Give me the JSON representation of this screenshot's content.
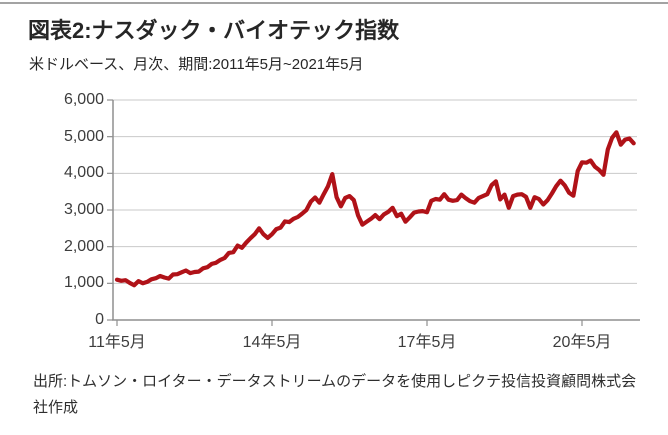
{
  "header": {
    "title": "図表2:ナスダック・バイオテック指数",
    "subtitle": "米ドルベース、月次、期間:2011年5月~2021年5月"
  },
  "footer": {
    "source": "出所:トムソン・ロイター・データストリームのデータを使用しピクテ投信投資顧問株式会社作成"
  },
  "chart_data": {
    "type": "line",
    "title": "ナスダック・バイオテック指数",
    "xlabel": "",
    "ylabel": "",
    "ylim": [
      0,
      6000
    ],
    "ytick_interval": 1000,
    "grid": "horizontal",
    "legend": "none",
    "colors": {
      "line": "#b01218",
      "gridline": "#c9c9c9",
      "axis": "#8f8f8f"
    },
    "yticks": [
      {
        "label": "6,000",
        "value": 6000
      },
      {
        "label": "5,000",
        "value": 5000
      },
      {
        "label": "4,000",
        "value": 4000
      },
      {
        "label": "3,000",
        "value": 3000
      },
      {
        "label": "2,000",
        "value": 2000
      },
      {
        "label": "1,000",
        "value": 1000
      },
      {
        "label": "0",
        "value": 0
      }
    ],
    "xticks": [
      {
        "label": "11年5月",
        "month_index": 0
      },
      {
        "label": "14年5月",
        "month_index": 36
      },
      {
        "label": "17年5月",
        "month_index": 72
      },
      {
        "label": "20年5月",
        "month_index": 108
      }
    ],
    "x_start": "2011-05",
    "x_end": "2021-05",
    "frequency": "monthly",
    "series": [
      {
        "name": "ナスダック・バイオテック指数(米ドルベース)",
        "color": "#b01218",
        "values": [
          1100,
          1070,
          1085,
          1010,
          950,
          1060,
          1000,
          1040,
          1110,
          1140,
          1200,
          1160,
          1130,
          1240,
          1250,
          1300,
          1350,
          1280,
          1310,
          1320,
          1410,
          1440,
          1530,
          1560,
          1640,
          1690,
          1830,
          1850,
          2030,
          1970,
          2110,
          2230,
          2340,
          2500,
          2340,
          2240,
          2340,
          2480,
          2520,
          2690,
          2670,
          2760,
          2810,
          2900,
          3000,
          3230,
          3340,
          3200,
          3430,
          3650,
          3980,
          3350,
          3100,
          3330,
          3380,
          3270,
          2850,
          2600,
          2680,
          2760,
          2860,
          2750,
          2880,
          2950,
          3060,
          2830,
          2900,
          2680,
          2800,
          2930,
          2960,
          2970,
          2940,
          3250,
          3300,
          3280,
          3430,
          3280,
          3250,
          3270,
          3420,
          3320,
          3240,
          3200,
          3330,
          3380,
          3430,
          3680,
          3780,
          3290,
          3420,
          3060,
          3380,
          3420,
          3430,
          3360,
          3060,
          3350,
          3300,
          3150,
          3270,
          3450,
          3650,
          3800,
          3670,
          3470,
          3390,
          4060,
          4300,
          4290,
          4350,
          4180,
          4090,
          3960,
          4650,
          4970,
          5120,
          4780,
          4920,
          4950,
          4820
        ]
      }
    ]
  }
}
